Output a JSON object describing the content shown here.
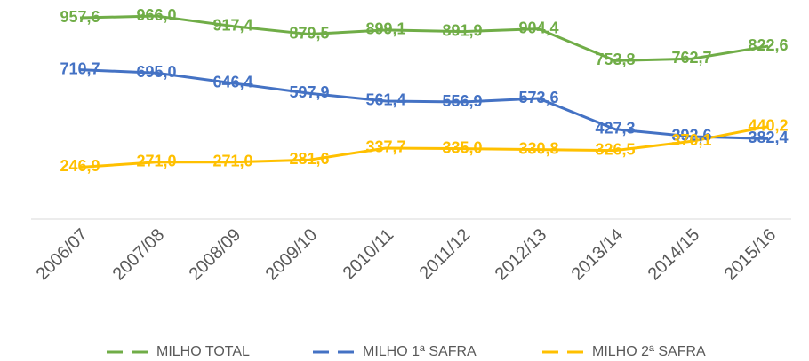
{
  "chart_data": {
    "type": "line",
    "categories": [
      "2006/07",
      "2007/08",
      "2008/09",
      "2009/10",
      "2010/11",
      "2011/12",
      "2012/13",
      "2013/14",
      "2014/15",
      "2015/16"
    ],
    "series": [
      {
        "name": "MILHO TOTAL",
        "color": "#70ad47",
        "values": [
          957.6,
          966.0,
          917.4,
          879.5,
          899.1,
          891.9,
          904.4,
          753.8,
          762.7,
          822.6
        ],
        "value_labels": [
          "957,6",
          "966,0",
          "917,4",
          "879,5",
          "899,1",
          "891,9",
          "904,4",
          "753,8",
          "762,7",
          "822,6"
        ]
      },
      {
        "name": "MILHO 1ª SAFRA",
        "color": "#4472c4",
        "values": [
          710.7,
          695.0,
          646.4,
          597.9,
          561.4,
          556.9,
          573.6,
          427.3,
          392.6,
          382.4
        ],
        "value_labels": [
          "710,7",
          "695,0",
          "646,4",
          "597,9",
          "561,4",
          "556,9",
          "573,6",
          "427,3",
          "392,6",
          "382,4"
        ]
      },
      {
        "name": "MILHO 2ª SAFRA",
        "color": "#ffc000",
        "values": [
          246.9,
          271.0,
          271.0,
          281.6,
          337.7,
          335.0,
          330.8,
          326.5,
          370.1,
          440.2
        ],
        "value_labels": [
          "246,9",
          "271,0",
          "271,0",
          "281,6",
          "337,7",
          "335,0",
          "330,8",
          "326,5",
          "370,1",
          "440,2"
        ]
      }
    ],
    "ylim": [
      0,
      1000
    ],
    "legend": "bottom"
  }
}
